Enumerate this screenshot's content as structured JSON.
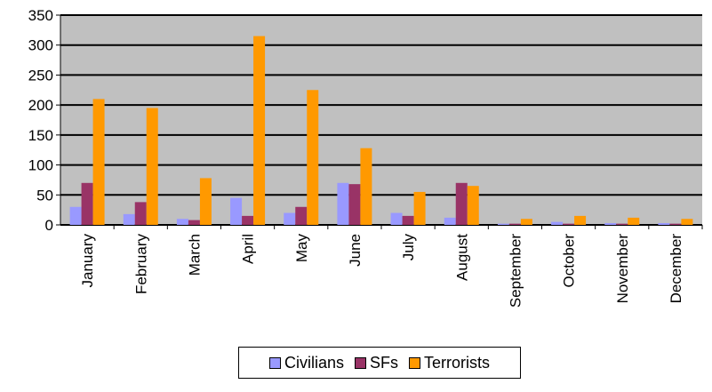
{
  "chart_data": {
    "type": "bar",
    "categories": [
      "January",
      "February",
      "March",
      "April",
      "May",
      "June",
      "July",
      "August",
      "September",
      "October",
      "November",
      "December"
    ],
    "series": [
      {
        "name": "Civilians",
        "color": "#9999ff",
        "values": [
          30,
          18,
          10,
          45,
          20,
          70,
          20,
          12,
          2,
          5,
          3,
          3
        ]
      },
      {
        "name": "SFs",
        "color": "#993366",
        "values": [
          70,
          38,
          8,
          15,
          30,
          68,
          15,
          70,
          2,
          2,
          2,
          2
        ]
      },
      {
        "name": "Terrorists",
        "color": "#ff9900",
        "values": [
          210,
          195,
          78,
          315,
          225,
          128,
          55,
          65,
          10,
          15,
          12,
          10
        ]
      }
    ],
    "yticks": [
      "0",
      "50",
      "100",
      "150",
      "200",
      "250",
      "300",
      "350"
    ],
    "ylim": [
      0,
      350
    ],
    "grid": true,
    "plot_background": "#c0c0c0",
    "legend": "bottom"
  }
}
